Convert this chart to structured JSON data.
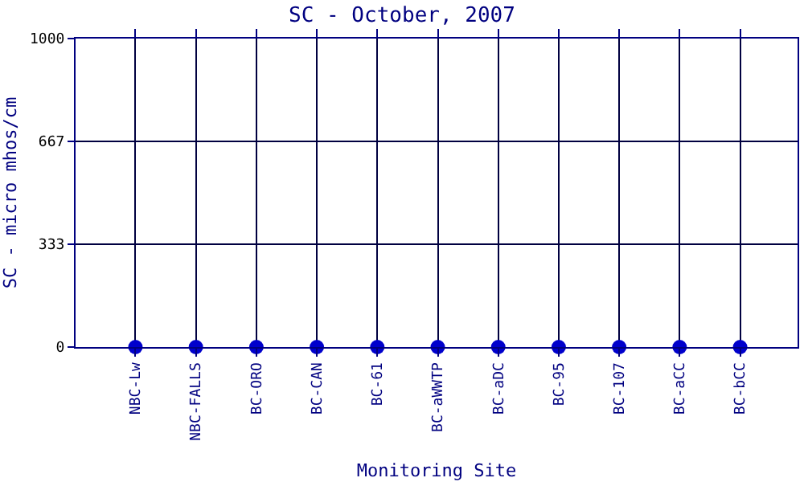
{
  "chart_data": {
    "type": "scatter",
    "title": "SC - October, 2007",
    "xlabel": "Monitoring Site",
    "ylabel": "SC - micro mhos/cm",
    "categories": [
      "NBC-Lw",
      "NBC-FALLS",
      "BC-ORO",
      "BC-CAN",
      "BC-61",
      "BC-aWWTP",
      "BC-aDC",
      "BC-95",
      "BC-107",
      "BC-aCC",
      "BC-bCC"
    ],
    "values": [
      0,
      0,
      0,
      0,
      0,
      0,
      0,
      0,
      0,
      0,
      0
    ],
    "color": "#0000cc",
    "marker": "circle",
    "ylim": [
      0,
      1000
    ],
    "yticks": [
      0,
      333,
      667,
      1000
    ],
    "grid": true
  }
}
